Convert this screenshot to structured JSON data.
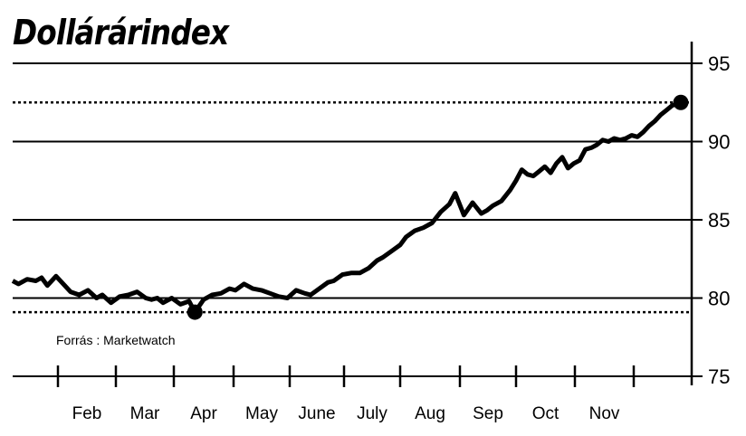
{
  "title": "Dollárárindex",
  "source": "Forrás : Marketwatch",
  "chart_data": {
    "type": "line",
    "title": "Dollárárindex",
    "xlabel": "",
    "ylabel": "",
    "ylim": [
      75,
      95
    ],
    "yticks": [
      75,
      80,
      85,
      90,
      95
    ],
    "y_axis_side": "right",
    "grid": "horizontal",
    "reference_lines": [
      {
        "value": 92.5,
        "style": "dotted"
      },
      {
        "value": 79.1,
        "style": "dotted"
      }
    ],
    "categories": [
      "Feb",
      "Mar",
      "Apr",
      "May",
      "June",
      "July",
      "Aug",
      "Sep",
      "Oct",
      "Nov"
    ],
    "xlim": [
      0,
      11.55
    ],
    "x": [
      0.0,
      0.1,
      0.25,
      0.4,
      0.5,
      0.6,
      0.75,
      0.85,
      1.0,
      1.15,
      1.3,
      1.45,
      1.55,
      1.7,
      1.85,
      2.0,
      2.15,
      2.3,
      2.4,
      2.5,
      2.6,
      2.75,
      2.9,
      3.05,
      3.15,
      3.3,
      3.45,
      3.6,
      3.75,
      3.85,
      4.0,
      4.15,
      4.3,
      4.45,
      4.6,
      4.75,
      4.9,
      5.05,
      5.15,
      5.3,
      5.45,
      5.55,
      5.7,
      5.85,
      6.0,
      6.15,
      6.3,
      6.4,
      6.55,
      6.7,
      6.8,
      6.95,
      7.1,
      7.25,
      7.4,
      7.55,
      7.65,
      7.8,
      7.95,
      8.1,
      8.2,
      8.3,
      8.45,
      8.6,
      8.7,
      8.8,
      8.9,
      9.0,
      9.1,
      9.2,
      9.3,
      9.4,
      9.5,
      9.6,
      9.7,
      9.8,
      9.9,
      10.0,
      10.1,
      10.2,
      10.3,
      10.4,
      10.5,
      10.6,
      10.7,
      10.8,
      10.9,
      11.0,
      11.1,
      11.2,
      11.3,
      11.4,
      11.55
    ],
    "values": [
      81.1,
      80.9,
      81.2,
      81.1,
      81.3,
      80.8,
      81.4,
      81.0,
      80.4,
      80.2,
      80.5,
      80.0,
      80.2,
      79.7,
      80.1,
      80.2,
      80.4,
      80.0,
      79.9,
      80.0,
      79.7,
      80.0,
      79.6,
      79.8,
      79.1,
      79.9,
      80.2,
      80.3,
      80.6,
      80.5,
      80.9,
      80.6,
      80.5,
      80.3,
      80.1,
      80.0,
      80.5,
      80.3,
      80.2,
      80.6,
      81.0,
      81.1,
      81.5,
      81.6,
      81.6,
      81.9,
      82.4,
      82.6,
      83.0,
      83.4,
      83.9,
      84.3,
      84.5,
      84.8,
      85.5,
      86.0,
      86.7,
      85.3,
      86.1,
      85.4,
      85.6,
      85.9,
      86.2,
      86.9,
      87.5,
      88.2,
      87.9,
      87.8,
      88.1,
      88.4,
      88.0,
      88.6,
      89.0,
      88.3,
      88.6,
      88.8,
      89.5,
      89.6,
      89.8,
      90.1,
      90.0,
      90.2,
      90.1,
      90.2,
      90.4,
      90.3,
      90.6,
      91.0,
      91.3,
      91.7,
      92.0,
      92.3,
      92.5
    ],
    "markers": [
      {
        "x": 3.15,
        "value": 79.1
      },
      {
        "x": 11.55,
        "value": 92.5
      }
    ]
  }
}
